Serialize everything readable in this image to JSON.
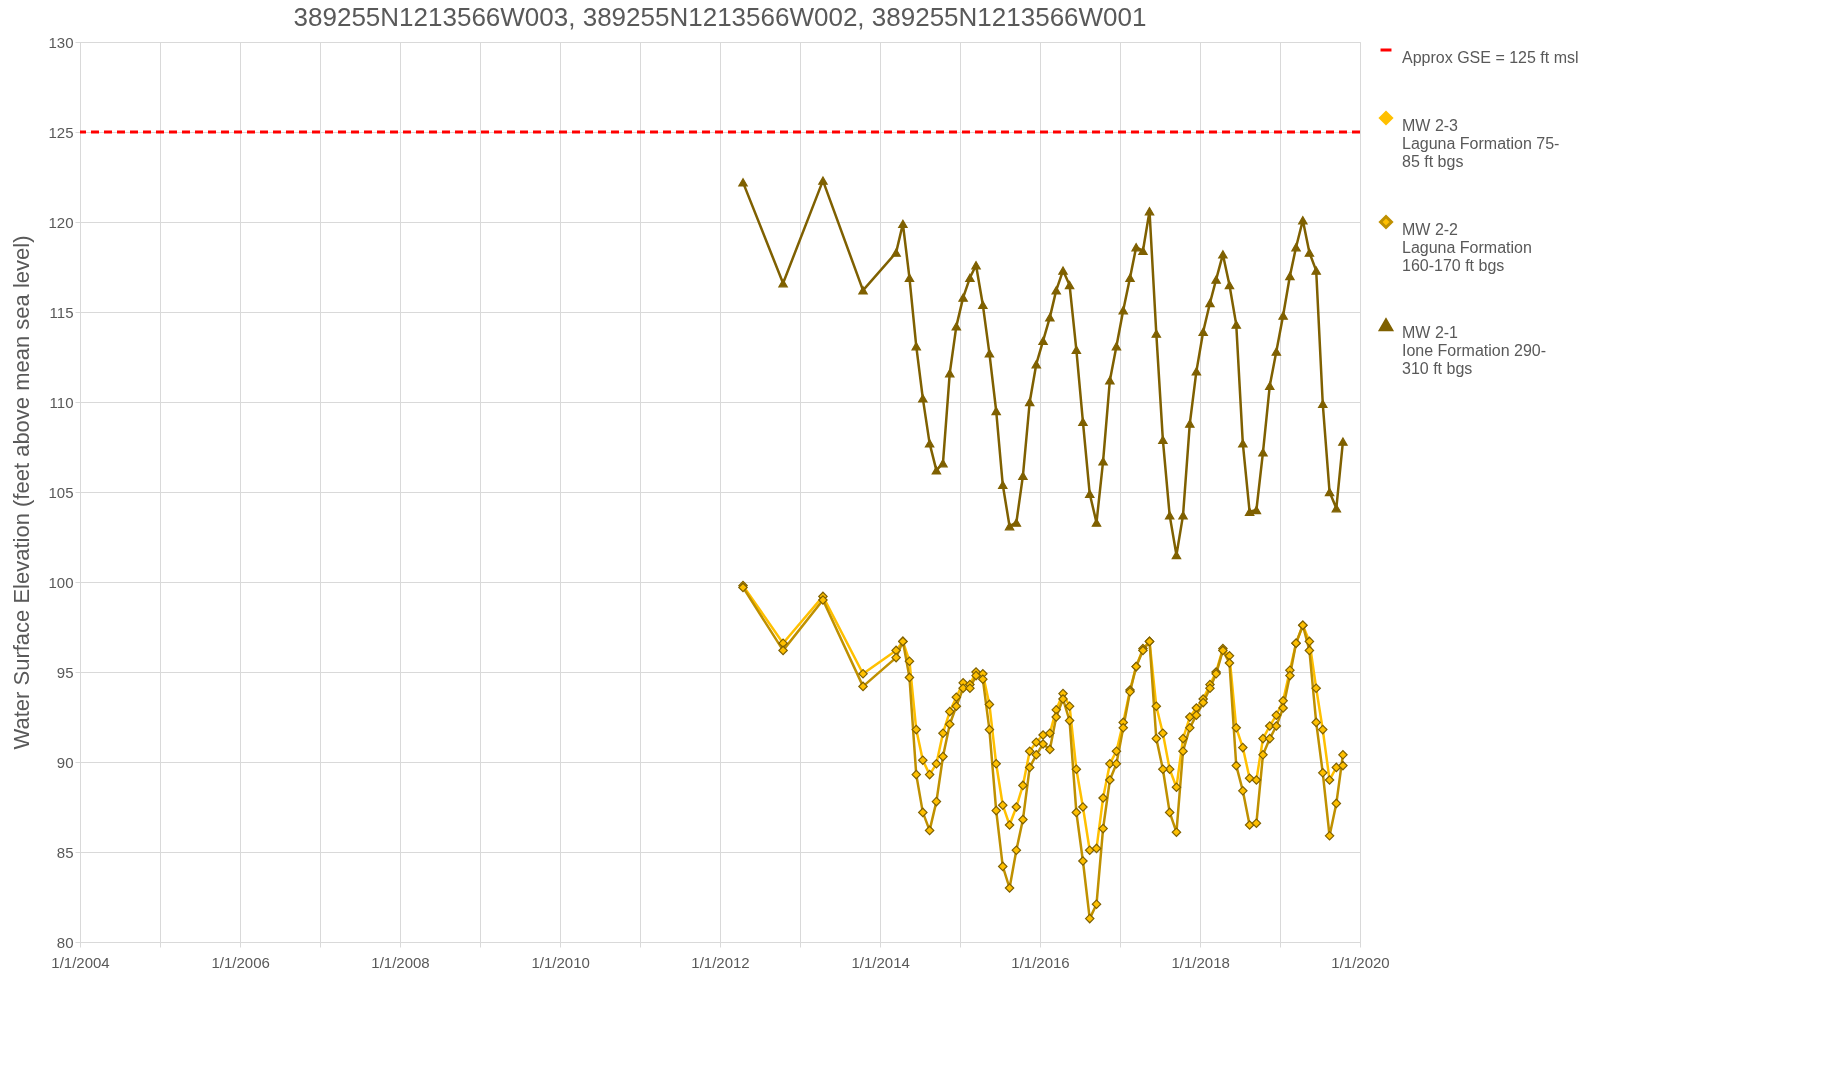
{
  "chart_data": {
    "type": "line",
    "title": "389255N1213566W003, 389255N1213566W002, 389255N1213566W001",
    "ylabel": "Water Surface Elevation (feet above mean sea level)",
    "x": [
      "2012-04-15",
      "2012-10-15",
      "2013-04-15",
      "2013-10-15",
      "2014-03-15",
      "2014-04-15",
      "2014-05-15",
      "2014-06-15",
      "2014-07-15",
      "2014-08-15",
      "2014-09-15",
      "2014-10-15",
      "2014-11-15",
      "2014-12-15",
      "2015-01-15",
      "2015-02-15",
      "2015-03-15",
      "2015-04-15",
      "2015-05-15",
      "2015-06-15",
      "2015-07-15",
      "2015-08-15",
      "2015-09-15",
      "2015-10-15",
      "2015-11-15",
      "2015-12-15",
      "2016-01-15",
      "2016-02-15",
      "2016-03-15",
      "2016-04-15",
      "2016-05-15",
      "2016-06-15",
      "2016-07-15",
      "2016-08-15",
      "2016-09-15",
      "2016-10-15",
      "2016-11-15",
      "2016-12-15",
      "2017-01-15",
      "2017-02-15",
      "2017-03-15",
      "2017-04-15",
      "2017-05-15",
      "2017-06-15",
      "2017-07-15",
      "2017-08-15",
      "2017-09-15",
      "2017-10-15",
      "2017-11-15",
      "2017-12-15",
      "2018-01-15",
      "2018-02-15",
      "2018-03-15",
      "2018-04-15",
      "2018-05-15",
      "2018-06-15",
      "2018-07-15",
      "2018-08-15",
      "2018-09-15",
      "2018-10-15",
      "2018-11-15",
      "2018-12-15",
      "2019-01-15",
      "2019-02-15",
      "2019-03-15",
      "2019-04-15",
      "2019-05-15",
      "2019-06-15",
      "2019-07-15",
      "2019-08-15",
      "2019-09-15",
      "2019-10-15"
    ],
    "series": [
      {
        "name": "MW 2-3\nLaguna Formation     75-\n85 ft bgs",
        "color": "#ffc000",
        "marker": "diamond",
        "values": [
          99.8,
          96.6,
          99.2,
          94.9,
          96.2,
          96.7,
          95.6,
          91.8,
          90.1,
          89.3,
          89.9,
          91.6,
          92.8,
          93.6,
          94.4,
          94.3,
          95.0,
          94.9,
          93.2,
          89.9,
          87.6,
          86.5,
          87.5,
          88.7,
          90.6,
          91.1,
          91.5,
          91.6,
          92.9,
          93.8,
          93.1,
          89.6,
          87.5,
          85.1,
          85.2,
          88.0,
          89.9,
          90.6,
          92.2,
          94.0,
          95.3,
          96.3,
          96.7,
          93.1,
          91.6,
          89.6,
          88.6,
          91.3,
          92.5,
          93.0,
          93.5,
          94.3,
          95.0,
          96.3,
          95.9,
          91.9,
          90.8,
          89.1,
          89.0,
          91.3,
          92.0,
          92.6,
          93.4,
          95.1,
          96.6,
          97.6,
          96.7,
          94.1,
          91.8,
          89.0,
          89.7,
          89.8
        ]
      },
      {
        "name": "MW 2-2\nLaguna Formation\n160-170 ft bgs",
        "color": "#bf9000",
        "marker": "diamond",
        "values": [
          99.7,
          96.2,
          99.0,
          94.2,
          95.8,
          96.7,
          94.7,
          89.3,
          87.2,
          86.2,
          87.8,
          90.3,
          92.1,
          93.1,
          94.1,
          94.1,
          94.8,
          94.6,
          91.8,
          87.3,
          84.2,
          83.0,
          85.1,
          86.8,
          89.7,
          90.4,
          91.0,
          90.7,
          92.5,
          93.5,
          92.3,
          87.2,
          84.5,
          81.3,
          82.1,
          86.3,
          89.0,
          89.9,
          91.9,
          93.9,
          95.3,
          96.2,
          96.7,
          91.3,
          89.6,
          87.2,
          86.1,
          90.6,
          91.9,
          92.6,
          93.3,
          94.1,
          94.9,
          96.2,
          95.5,
          89.8,
          88.4,
          86.5,
          86.6,
          90.4,
          91.3,
          92.0,
          93.0,
          94.8,
          96.6,
          97.6,
          96.2,
          92.2,
          89.4,
          85.9,
          87.7,
          90.4
        ]
      },
      {
        "name": "MW 2-1\nIone Formation     290-\n310 ft bgs",
        "color": "#7f6000",
        "marker": "triangle",
        "values": [
          122.2,
          116.6,
          122.3,
          116.2,
          118.3,
          119.9,
          116.9,
          113.1,
          110.2,
          107.7,
          106.2,
          106.6,
          111.6,
          114.2,
          115.8,
          116.9,
          117.6,
          115.4,
          112.7,
          109.5,
          105.4,
          103.1,
          103.3,
          105.9,
          110.0,
          112.1,
          113.4,
          114.7,
          116.2,
          117.3,
          116.5,
          112.9,
          108.9,
          104.9,
          103.3,
          106.7,
          111.2,
          113.1,
          115.1,
          116.9,
          118.6,
          118.4,
          120.6,
          113.8,
          107.9,
          103.7,
          101.5,
          103.7,
          108.8,
          111.7,
          113.9,
          115.5,
          116.8,
          118.2,
          116.5,
          114.3,
          107.7,
          103.9,
          104.0,
          107.2,
          110.9,
          112.8,
          114.8,
          117.0,
          118.6,
          120.1,
          118.3,
          117.3,
          109.9,
          105.0,
          104.1,
          107.8
        ]
      }
    ],
    "ref_lines": [
      {
        "axis": "y",
        "value": 125,
        "label": "Approx GSE = 125 ft msl",
        "color": "#ff0000",
        "line_style": "dashed"
      }
    ],
    "xlim": [
      "2004-01-01",
      "2020-01-01"
    ],
    "xticks": [
      {
        "value": "2004-01-01",
        "label": "1/1/2004"
      },
      {
        "value": "2005-01-01",
        "label": null
      },
      {
        "value": "2006-01-01",
        "label": "1/1/2006"
      },
      {
        "value": "2007-01-01",
        "label": null
      },
      {
        "value": "2008-01-01",
        "label": "1/1/2008"
      },
      {
        "value": "2009-01-01",
        "label": null
      },
      {
        "value": "2010-01-01",
        "label": "1/1/2010"
      },
      {
        "value": "2011-01-01",
        "label": null
      },
      {
        "value": "2012-01-01",
        "label": "1/1/2012"
      },
      {
        "value": "2013-01-01",
        "label": null
      },
      {
        "value": "2014-01-01",
        "label": "1/1/2014"
      },
      {
        "value": "2015-01-01",
        "label": null
      },
      {
        "value": "2016-01-01",
        "label": "1/1/2016"
      },
      {
        "value": "2017-01-01",
        "label": null
      },
      {
        "value": "2018-01-01",
        "label": "1/1/2018"
      },
      {
        "value": "2019-01-01",
        "label": null
      },
      {
        "value": "2020-01-01",
        "label": "1/1/2020"
      }
    ],
    "ylim": [
      80,
      130
    ],
    "yticks": [
      80,
      85,
      90,
      95,
      100,
      105,
      110,
      115,
      120,
      125,
      130
    ],
    "grid": true,
    "legend": "right",
    "line_style": "solid"
  }
}
